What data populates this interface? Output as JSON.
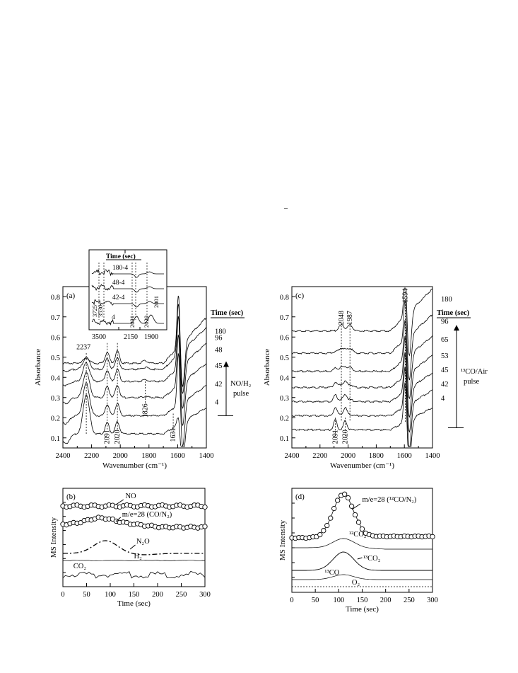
{
  "figure": {
    "marker_dash": "–"
  },
  "chart_data": [
    {
      "id": "a",
      "panel_label": "(a)",
      "type": "line",
      "xlabel": "Wavenumber (cm⁻¹)",
      "ylabel": "Absorbance",
      "xlim": [
        2400,
        1400
      ],
      "x_reversed": true,
      "ylim": [
        0.05,
        0.85
      ],
      "xticks": [
        2400,
        2200,
        2000,
        1800,
        1600,
        1400
      ],
      "yticks": [
        0.1,
        0.2,
        0.3,
        0.4,
        0.5,
        0.6,
        0.7,
        0.8
      ],
      "legend_title": "Time (sec)",
      "arrow_label": [
        "NO/H₂",
        "pulse"
      ],
      "series": [
        {
          "name": "4",
          "baseline": 0.12
        },
        {
          "name": "42",
          "baseline": 0.21
        },
        {
          "name": "45",
          "baseline": 0.3
        },
        {
          "name": "48",
          "baseline": 0.38
        },
        {
          "name": "96",
          "baseline": 0.44
        },
        {
          "name": "180",
          "baseline": 0.47
        }
      ],
      "annotations": [
        {
          "text": "2237",
          "x": 2237
        },
        {
          "text": "2091",
          "x": 2091
        },
        {
          "text": "2020",
          "x": 2020
        },
        {
          "text": "1826",
          "x": 1826
        },
        {
          "text": "1631",
          "x": 1631
        }
      ],
      "inset": {
        "title": "Time (sec)",
        "xticks": [
          "3500",
          "2150",
          "1900"
        ],
        "series_labels": [
          "180-4",
          "48-4",
          "42-4",
          "4"
        ],
        "annotations": [
          "3725",
          "3530",
          "2091",
          "2020",
          "2001"
        ]
      }
    },
    {
      "id": "b",
      "panel_label": "(b)",
      "type": "line",
      "xlabel": "Time (sec)",
      "ylabel": "MS Intensity",
      "xlim": [
        0,
        300
      ],
      "xticks": [
        0,
        50,
        100,
        150,
        200,
        250,
        300
      ],
      "series": [
        {
          "name": "NO",
          "marker": "circle"
        },
        {
          "name": "m/e=28 (CO/N₂)",
          "marker": "circle",
          "peak_x": 80
        },
        {
          "name": "N₂O",
          "style": "dash-dot",
          "peak_x": 90
        },
        {
          "name": "H₂",
          "style": "solid"
        },
        {
          "name": "CO₂",
          "style": "solid"
        }
      ]
    },
    {
      "id": "c",
      "panel_label": "(c)",
      "type": "line",
      "xlabel": "Wavenumber (cm⁻¹)",
      "ylabel": "Absorbance",
      "xlim": [
        2400,
        1400
      ],
      "x_reversed": true,
      "ylim": [
        0.05,
        0.85
      ],
      "xticks": [
        2400,
        2200,
        2000,
        1800,
        1600,
        1400
      ],
      "yticks": [
        0.1,
        0.2,
        0.3,
        0.4,
        0.5,
        0.6,
        0.7,
        0.8
      ],
      "legend_title": "Time (sec)",
      "arrow_label": [
        "¹³CO/Air",
        "pulse"
      ],
      "series": [
        {
          "name": "4",
          "baseline": 0.14
        },
        {
          "name": "42",
          "baseline": 0.21
        },
        {
          "name": "45",
          "baseline": 0.28
        },
        {
          "name": "53",
          "baseline": 0.35
        },
        {
          "name": "65",
          "baseline": 0.43
        },
        {
          "name": "96",
          "baseline": 0.52
        },
        {
          "name": "180",
          "baseline": 0.63
        }
      ],
      "annotations": [
        {
          "text": "1594",
          "x": 1594
        },
        {
          "text": "2048",
          "x": 2048
        },
        {
          "text": "1987",
          "x": 1987
        },
        {
          "text": "2091",
          "x": 2091
        },
        {
          "text": "2020",
          "x": 2020
        }
      ]
    },
    {
      "id": "d",
      "panel_label": "(d)",
      "type": "line",
      "xlabel": "Time (sec)",
      "ylabel": "MS Intensity",
      "xlim": [
        0,
        300
      ],
      "xticks": [
        0,
        50,
        100,
        150,
        200,
        250,
        300
      ],
      "series": [
        {
          "name": "m/e=28 (¹²CO/N₂)",
          "marker": "circle",
          "peak_x": 110
        },
        {
          "name": "¹²CO₂",
          "style": "solid",
          "peak_x": 110
        },
        {
          "name": "¹³CO₂",
          "style": "solid",
          "peak_x": 110
        },
        {
          "name": "¹³CO",
          "style": "solid",
          "peak_x": 110
        },
        {
          "name": "O₂",
          "style": "dotted"
        }
      ]
    }
  ]
}
